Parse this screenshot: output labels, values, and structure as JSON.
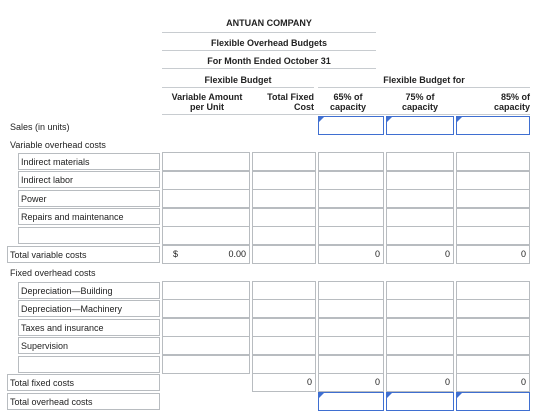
{
  "report": {
    "company": "ANTUAN COMPANY",
    "subtitle": "Flexible Overhead Budgets",
    "period": "For Month Ended October 31"
  },
  "headers": {
    "flexible_budget": "Flexible Budget",
    "flexible_budget_for": "Flexible Budget for",
    "variable_amount": "Variable Amount",
    "per_unit": "per Unit",
    "total_fixed": "Total Fixed",
    "cost": "Cost",
    "c65": "65% of",
    "c75": "75% of",
    "c85": "85% of",
    "capacity": "capacity"
  },
  "rows": {
    "sales": "Sales (in units)",
    "variable_overhead": "Variable overhead costs",
    "indirect_materials": "Indirect materials",
    "indirect_labor": "Indirect labor",
    "power": "Power",
    "repairs": "Repairs and maintenance",
    "total_variable": "Total variable costs",
    "fixed_overhead": "Fixed overhead costs",
    "dep_building": "Depreciation—Building",
    "dep_machinery": "Depreciation—Machinery",
    "taxes": "Taxes and insurance",
    "supervision": "Supervision",
    "total_fixed": "Total fixed costs",
    "total_overhead": "Total overhead costs"
  },
  "values": {
    "dollar_sign": "$",
    "total_variable_per_unit": "0.00",
    "total_variable_65": "0",
    "total_variable_75": "0",
    "total_variable_85": "0",
    "total_fixed_cost": "0",
    "total_fixed_65": "0",
    "total_fixed_75": "0",
    "total_fixed_85": "0"
  },
  "colors": {
    "input_border": "#3f6fd1",
    "cell_border": "#b8bcc0"
  }
}
